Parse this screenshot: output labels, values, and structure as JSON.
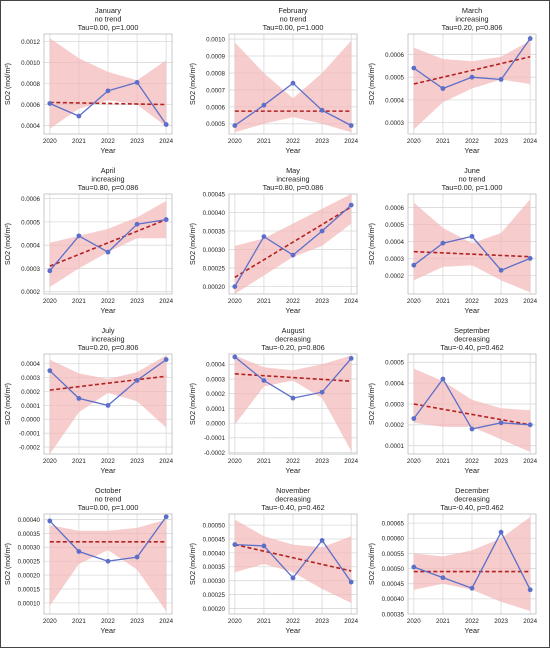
{
  "style": {
    "series_color": "#5b6fc9",
    "trend_color": "#b22222",
    "band_color": "#f4b6b8",
    "grid_color": "#d9d9d9",
    "frame_color": "#c8c8c8"
  },
  "chart_data": [
    {
      "type": "line",
      "title": [
        "January",
        "no trend",
        "Tau=0.00, p=1.000"
      ],
      "xlabel": "Year",
      "ylabel": "SO2 (mol/m²)",
      "x": [
        2020,
        2021,
        2022,
        2023,
        2024
      ],
      "xticks": [
        "2020",
        "2021",
        "2022",
        "2023",
        "2024"
      ],
      "ylim": [
        0.00032,
        0.00127
      ],
      "yticks": [
        0.0004,
        0.0006,
        0.0008,
        0.001,
        0.0012
      ],
      "yticklabels": [
        "0.0004",
        "0.0006",
        "0.0008",
        "0.0010",
        "0.0012"
      ],
      "values": [
        0.00061,
        0.00049,
        0.00073,
        0.00081,
        0.00041
      ],
      "trend": [
        0.00062,
        0.0006
      ],
      "band_upper": [
        0.00123,
        0.00104,
        0.00091,
        0.00083,
        0.00102
      ],
      "band_lower": [
        0.00037,
        0.00056,
        0.00064,
        0.0006,
        0.00039
      ]
    },
    {
      "type": "line",
      "title": [
        "February",
        "no trend",
        "Tau=0.00, p=1.000"
      ],
      "xlabel": "Year",
      "ylabel": "SO2 (mol/m²)",
      "x": [
        2020,
        2021,
        2022,
        2023,
        2024
      ],
      "xticks": [
        "2020",
        "2021",
        "2022",
        "2023",
        "2024"
      ],
      "ylim": [
        0.00044,
        0.00103
      ],
      "yticks": [
        0.0005,
        0.0006,
        0.0007,
        0.0008,
        0.0009,
        0.001
      ],
      "yticklabels": [
        "0.0005",
        "0.0006",
        "0.0007",
        "0.0008",
        "0.0009",
        "0.0010"
      ],
      "values": [
        0.00049,
        0.00061,
        0.00074,
        0.00058,
        0.00049
      ],
      "trend": [
        0.000575,
        0.000575
      ],
      "band_upper": [
        0.00098,
        0.0008,
        0.00065,
        0.0008,
        0.00099
      ],
      "band_lower": [
        0.00045,
        0.0005,
        0.00054,
        0.0005,
        0.00045
      ]
    },
    {
      "type": "line",
      "title": [
        "March",
        "increasing",
        "Tau=0.20, p=0.806"
      ],
      "xlabel": "Year",
      "ylabel": "SO2 (mol/m²)",
      "x": [
        2020,
        2021,
        2022,
        2023,
        2024
      ],
      "xticks": [
        "2020",
        "2021",
        "2022",
        "2023",
        "2024"
      ],
      "ylim": [
        0.00025,
        0.00069
      ],
      "yticks": [
        0.0003,
        0.0004,
        0.0005,
        0.0006
      ],
      "yticklabels": [
        "0.0003",
        "0.0004",
        "0.0005",
        "0.0006"
      ],
      "values": [
        0.00054,
        0.00045,
        0.0005,
        0.00049,
        0.00067
      ],
      "trend": [
        0.00047,
        0.00059
      ],
      "band_upper": [
        0.00063,
        0.00058,
        0.00057,
        0.00059,
        0.00066
      ],
      "band_lower": [
        0.00027,
        0.00039,
        0.00045,
        0.00049,
        0.00047
      ]
    },
    {
      "type": "line",
      "title": [
        "April",
        "increasing",
        "Tau=0.80, p=0.086"
      ],
      "xlabel": "Year",
      "ylabel": "SO2 (mol/m²)",
      "x": [
        2020,
        2021,
        2022,
        2023,
        2024
      ],
      "xticks": [
        "2020",
        "2021",
        "2022",
        "2023",
        "2024"
      ],
      "ylim": [
        0.00019,
        0.00062
      ],
      "yticks": [
        0.0002,
        0.0003,
        0.0004,
        0.0005,
        0.0006
      ],
      "yticklabels": [
        "0.0002",
        "0.0003",
        "0.0004",
        "0.0005",
        "0.0006"
      ],
      "values": [
        0.00029,
        0.00044,
        0.00037,
        0.00049,
        0.00051
      ],
      "trend": [
        0.00031,
        0.00051
      ],
      "band_upper": [
        0.00041,
        0.00044,
        0.00047,
        0.00052,
        0.00059
      ],
      "band_lower": [
        0.00022,
        0.0003,
        0.00037,
        0.00043,
        0.00043
      ]
    },
    {
      "type": "line",
      "title": [
        "May",
        "increasing",
        "Tau=0.80, p=0.086"
      ],
      "xlabel": "Year",
      "ylabel": "SO2 (mol/m²)",
      "x": [
        2020,
        2021,
        2022,
        2023,
        2024
      ],
      "xticks": [
        "2020",
        "2021",
        "2022",
        "2023",
        "2024"
      ],
      "ylim": [
        0.00018,
        0.00045
      ],
      "yticks": [
        0.0002,
        0.00025,
        0.0003,
        0.00035,
        0.0004,
        0.00045
      ],
      "yticklabels": [
        "0.00020",
        "0.00025",
        "0.00030",
        "0.00035",
        "0.00040",
        "0.00045"
      ],
      "values": [
        0.0002,
        0.000335,
        0.000285,
        0.00035,
        0.00042
      ],
      "trend": [
        0.000225,
        0.000415
      ],
      "band_upper": [
        0.00031,
        0.00033,
        0.00037,
        0.00041,
        0.00045
      ],
      "band_lower": [
        0.00018,
        0.00023,
        0.00028,
        0.00031,
        0.00037
      ]
    },
    {
      "type": "line",
      "title": [
        "June",
        "no trend",
        "Tau=0.00, p=1.000"
      ],
      "xlabel": "Year",
      "ylabel": "SO2 (mol/m²)",
      "x": [
        2020,
        2021,
        2022,
        2023,
        2024
      ],
      "xticks": [
        "2020",
        "2021",
        "2022",
        "2023",
        "2024"
      ],
      "ylim": [
        9e-05,
        0.00068
      ],
      "yticks": [
        0.0002,
        0.0003,
        0.0004,
        0.0005,
        0.0006
      ],
      "yticklabels": [
        "0.0002",
        "0.0003",
        "0.0004",
        "0.0005",
        "0.0006"
      ],
      "values": [
        0.00026,
        0.00039,
        0.00043,
        0.00023,
        0.0003
      ],
      "trend": [
        0.00034,
        0.00031
      ],
      "band_upper": [
        0.00063,
        0.00048,
        0.00039,
        0.00045,
        0.00065
      ],
      "band_lower": [
        0.00017,
        0.00025,
        0.00026,
        0.00017,
        0.0001
      ]
    },
    {
      "type": "line",
      "title": [
        "July",
        "increasing",
        "Tau=0.20, p=0.806"
      ],
      "xlabel": "Year",
      "ylabel": "SO2 (mol/m²)",
      "x": [
        2020,
        2021,
        2022,
        2023,
        2024
      ],
      "xticks": [
        "2020",
        "2021",
        "2022",
        "2023",
        "2024"
      ],
      "ylim": [
        -0.00025,
        0.00047
      ],
      "yticks": [
        -0.0002,
        -0.0001,
        0.0,
        0.0001,
        0.0002,
        0.0003,
        0.0004
      ],
      "yticklabels": [
        "-0.0002",
        "-0.0001",
        "0.0000",
        "0.0001",
        "0.0002",
        "0.0003",
        "0.0004"
      ],
      "values": [
        0.00035,
        0.00015,
        0.0001,
        0.00028,
        0.00043
      ],
      "trend": [
        0.00021,
        0.00031
      ],
      "band_upper": [
        0.00043,
        0.00033,
        0.00029,
        0.00034,
        0.00046
      ],
      "band_lower": [
        -0.00025,
        5e-05,
        0.00019,
        0.00013,
        -6e-05
      ]
    },
    {
      "type": "line",
      "title": [
        "August",
        "decreasing",
        "Tau=-0.20, p=0.806"
      ],
      "xlabel": "Year",
      "ylabel": "SO2 (mol/m²)",
      "x": [
        2020,
        2021,
        2022,
        2023,
        2024
      ],
      "xticks": [
        "2020",
        "2021",
        "2022",
        "2023",
        "2024"
      ],
      "ylim": [
        -0.00021,
        0.00047
      ],
      "yticks": [
        -0.0002,
        -0.0001,
        0.0,
        0.0001,
        0.0002,
        0.0003,
        0.0004
      ],
      "yticklabels": [
        "-0.0002",
        "-0.0001",
        "0.0000",
        "0.0001",
        "0.0002",
        "0.0003",
        "0.0004"
      ],
      "values": [
        0.00045,
        0.00029,
        0.00017,
        0.00021,
        0.00044
      ],
      "trend": [
        0.000335,
        0.000285
      ],
      "band_upper": [
        0.00046,
        0.00038,
        0.00036,
        0.0004,
        0.00046
      ],
      "band_lower": [
        -1e-05,
        0.00025,
        0.00029,
        0.00017,
        -0.00019
      ]
    },
    {
      "type": "line",
      "title": [
        "September",
        "decreasing",
        "Tau=-0.40, p=0.462"
      ],
      "xlabel": "Year",
      "ylabel": "SO2 (mol/m²)",
      "x": [
        2020,
        2021,
        2022,
        2023,
        2024
      ],
      "xticks": [
        "2020",
        "2021",
        "2022",
        "2023",
        "2024"
      ],
      "ylim": [
        6e-05,
        0.00054
      ],
      "yticks": [
        0.0001,
        0.0002,
        0.0003,
        0.0004,
        0.0005
      ],
      "yticklabels": [
        "0.0001",
        "0.0002",
        "0.0003",
        "0.0004",
        "0.0005"
      ],
      "values": [
        0.00023,
        0.00042,
        0.00018,
        0.00021,
        0.0002
      ],
      "trend": [
        0.0003,
        0.0002
      ],
      "band_upper": [
        0.00047,
        0.00041,
        0.00032,
        0.00028,
        0.00027
      ],
      "band_lower": [
        0.00021,
        0.00019,
        0.00019,
        0.00013,
        7e-05
      ]
    },
    {
      "type": "line",
      "title": [
        "October",
        "no trend",
        "Tau=0.00, p=1.000"
      ],
      "xlabel": "Year",
      "ylabel": "SO2 (mol/m²)",
      "x": [
        2020,
        2021,
        2022,
        2023,
        2024
      ],
      "xticks": [
        "2020",
        "2021",
        "2022",
        "2023",
        "2024"
      ],
      "ylim": [
        6e-05,
        0.00042
      ],
      "yticks": [
        0.0001,
        0.00015,
        0.0002,
        0.00025,
        0.0003,
        0.00035,
        0.0004
      ],
      "yticklabels": [
        "0.00010",
        "0.00015",
        "0.00020",
        "0.00025",
        "0.00030",
        "0.00035",
        "0.00040"
      ],
      "values": [
        0.000395,
        0.000285,
        0.00025,
        0.000265,
        0.00041
      ],
      "trend": [
        0.00032,
        0.00032
      ],
      "band_upper": [
        0.00038,
        0.00036,
        0.00036,
        0.00037,
        0.0004
      ],
      "band_lower": [
        9e-05,
        0.00024,
        0.00029,
        0.00022,
        7e-05
      ]
    },
    {
      "type": "line",
      "title": [
        "November",
        "decreasing",
        "Tau=-0.40, p=0.462"
      ],
      "xlabel": "Year",
      "ylabel": "SO2 (mol/m²)",
      "x": [
        2020,
        2021,
        2022,
        2023,
        2024
      ],
      "xticks": [
        "2020",
        "2021",
        "2022",
        "2023",
        "2024"
      ],
      "ylim": [
        0.00018,
        0.00054
      ],
      "yticks": [
        0.0002,
        0.00025,
        0.0003,
        0.00035,
        0.0004,
        0.00045,
        0.0005
      ],
      "yticklabels": [
        "0.00020",
        "0.00025",
        "0.00030",
        "0.00035",
        "0.00040",
        "0.00045",
        "0.00050"
      ],
      "values": [
        0.00043,
        0.000425,
        0.00031,
        0.000445,
        0.000295
      ],
      "trend": [
        0.00043,
        0.000335
      ],
      "band_upper": [
        0.00052,
        0.00046,
        0.00043,
        0.00042,
        0.00046
      ],
      "band_lower": [
        0.00033,
        0.00036,
        0.00033,
        0.00027,
        0.00022
      ]
    },
    {
      "type": "line",
      "title": [
        "December",
        "decreasing",
        "Tau=-0.40, p=0.462"
      ],
      "xlabel": "Year",
      "ylabel": "SO2 (mol/m²)",
      "x": [
        2020,
        2021,
        2022,
        2023,
        2024
      ],
      "xticks": [
        "2020",
        "2021",
        "2022",
        "2023",
        "2024"
      ],
      "ylim": [
        0.00035,
        0.00068
      ],
      "yticks": [
        0.00035,
        0.0004,
        0.00045,
        0.0005,
        0.00055,
        0.0006,
        0.00065
      ],
      "yticklabels": [
        "0.00035",
        "0.00040",
        "0.00045",
        "0.00050",
        "0.00055",
        "0.00060",
        "0.00065"
      ],
      "values": [
        0.000505,
        0.00047,
        0.000435,
        0.00062,
        0.00043
      ],
      "trend": [
        0.00049,
        0.00049
      ],
      "band_upper": [
        0.00055,
        0.00054,
        0.00056,
        0.0006,
        0.00067
      ],
      "band_lower": [
        0.00043,
        0.00045,
        0.00043,
        0.00039,
        0.00036
      ]
    }
  ]
}
